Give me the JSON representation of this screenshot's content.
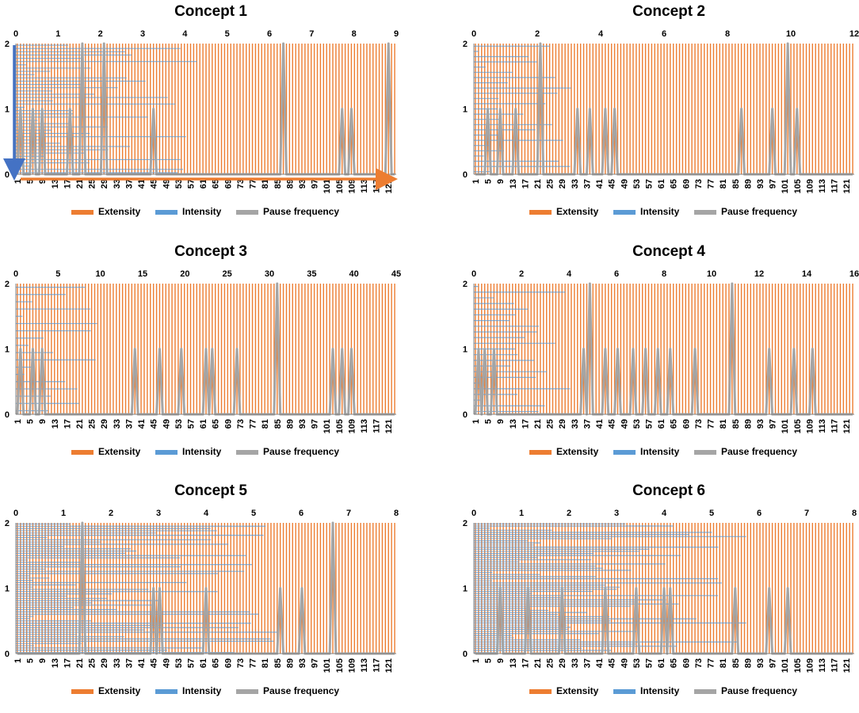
{
  "colors": {
    "extensity": "#ED7D31",
    "intensity": "#5B9BD5",
    "pause": "#A5A5A5",
    "arrow_blue": "#4472C4",
    "arrow_orange": "#ED7D31"
  },
  "legend": {
    "extensity": "Extensity",
    "intensity": "Intensity",
    "pause": "Pause frequency"
  },
  "chart_data": [
    {
      "type": "bar",
      "title": "Concept 1",
      "n": 123,
      "ylim": [
        0,
        2
      ],
      "yticks": [
        0,
        1,
        2
      ],
      "x_top": [
        0,
        1,
        2,
        3,
        4,
        5,
        6,
        7,
        8,
        9
      ],
      "x_top_max": 9,
      "x_bottom": [
        1,
        5,
        9,
        13,
        17,
        21,
        25,
        29,
        33,
        37,
        41,
        45,
        49,
        53,
        57,
        61,
        65,
        69,
        73,
        77,
        81,
        85,
        89,
        93,
        97,
        101,
        105,
        109,
        113,
        117,
        121
      ],
      "extensity_range": [
        1,
        123
      ],
      "intensity_bars": 40,
      "pause_peaks": [
        {
          "x": 2,
          "y": 1
        },
        {
          "x": 6,
          "y": 1
        },
        {
          "x": 9,
          "y": 1
        },
        {
          "x": 18,
          "y": 1
        },
        {
          "x": 22,
          "y": 2
        },
        {
          "x": 29,
          "y": 2
        },
        {
          "x": 45,
          "y": 1
        },
        {
          "x": 87,
          "y": 2
        },
        {
          "x": 106,
          "y": 1
        },
        {
          "x": 109,
          "y": 1
        },
        {
          "x": 121,
          "y": 2
        }
      ],
      "arrows": true
    },
    {
      "type": "bar",
      "title": "Concept 2",
      "n": 123,
      "ylim": [
        0,
        2
      ],
      "yticks": [
        0,
        1,
        2
      ],
      "x_top": [
        0,
        2,
        4,
        6,
        8,
        10,
        12
      ],
      "x_top_max": 12,
      "x_bottom": [
        1,
        5,
        9,
        13,
        17,
        21,
        25,
        29,
        33,
        37,
        41,
        45,
        49,
        53,
        57,
        61,
        65,
        69,
        73,
        77,
        81,
        85,
        89,
        93,
        97,
        101,
        105,
        109,
        113,
        117,
        121
      ],
      "extensity_range": [
        1,
        123
      ],
      "intensity_bars": 25,
      "pause_peaks": [
        {
          "x": 5,
          "y": 1
        },
        {
          "x": 9,
          "y": 1
        },
        {
          "x": 14,
          "y": 1
        },
        {
          "x": 22,
          "y": 2
        },
        {
          "x": 34,
          "y": 1
        },
        {
          "x": 38,
          "y": 1
        },
        {
          "x": 43,
          "y": 1
        },
        {
          "x": 46,
          "y": 1
        },
        {
          "x": 87,
          "y": 1
        },
        {
          "x": 97,
          "y": 1
        },
        {
          "x": 102,
          "y": 2
        },
        {
          "x": 105,
          "y": 1
        }
      ],
      "arrows": false
    },
    {
      "type": "bar",
      "title": "Concept 3",
      "n": 123,
      "ylim": [
        0,
        2
      ],
      "yticks": [
        0,
        1,
        2
      ],
      "x_top": [
        0,
        5,
        10,
        15,
        20,
        25,
        30,
        35,
        40,
        45
      ],
      "x_top_max": 45,
      "x_bottom": [
        1,
        5,
        9,
        13,
        17,
        21,
        25,
        29,
        33,
        37,
        41,
        45,
        49,
        53,
        57,
        61,
        65,
        69,
        73,
        77,
        81,
        85,
        89,
        93,
        97,
        101,
        105,
        109,
        113,
        117,
        121
      ],
      "extensity_range": [
        1,
        123
      ],
      "intensity_bars": 18,
      "pause_peaks": [
        {
          "x": 2,
          "y": 1
        },
        {
          "x": 6,
          "y": 1
        },
        {
          "x": 9,
          "y": 1
        },
        {
          "x": 39,
          "y": 1
        },
        {
          "x": 47,
          "y": 1
        },
        {
          "x": 54,
          "y": 1
        },
        {
          "x": 62,
          "y": 1
        },
        {
          "x": 64,
          "y": 1
        },
        {
          "x": 72,
          "y": 1
        },
        {
          "x": 85,
          "y": 2
        },
        {
          "x": 103,
          "y": 1
        },
        {
          "x": 106,
          "y": 1
        },
        {
          "x": 109,
          "y": 1
        }
      ],
      "arrows": false
    },
    {
      "type": "bar",
      "title": "Concept 4",
      "n": 123,
      "ylim": [
        0,
        2
      ],
      "yticks": [
        0,
        1,
        2
      ],
      "x_top": [
        0,
        2,
        4,
        6,
        8,
        10,
        12,
        14,
        16
      ],
      "x_top_max": 16,
      "x_bottom": [
        1,
        5,
        9,
        13,
        17,
        21,
        25,
        29,
        33,
        37,
        41,
        45,
        49,
        53,
        57,
        61,
        65,
        69,
        73,
        77,
        81,
        85,
        89,
        93,
        97,
        101,
        105,
        109,
        113,
        117,
        121
      ],
      "extensity_range": [
        1,
        123
      ],
      "intensity_bars": 23,
      "pause_peaks": [
        {
          "x": 2,
          "y": 1
        },
        {
          "x": 4,
          "y": 1
        },
        {
          "x": 7,
          "y": 1
        },
        {
          "x": 36,
          "y": 1
        },
        {
          "x": 38,
          "y": 2
        },
        {
          "x": 43,
          "y": 1
        },
        {
          "x": 47,
          "y": 1
        },
        {
          "x": 52,
          "y": 1
        },
        {
          "x": 56,
          "y": 1
        },
        {
          "x": 60,
          "y": 1
        },
        {
          "x": 64,
          "y": 1
        },
        {
          "x": 72,
          "y": 1
        },
        {
          "x": 84,
          "y": 2
        },
        {
          "x": 96,
          "y": 1
        },
        {
          "x": 104,
          "y": 1
        },
        {
          "x": 110,
          "y": 1
        }
      ],
      "arrows": false
    },
    {
      "type": "bar",
      "title": "Concept 5",
      "n": 123,
      "ylim": [
        0,
        2
      ],
      "yticks": [
        0,
        1,
        2
      ],
      "x_top": [
        0,
        1,
        2,
        3,
        4,
        5,
        6,
        7,
        8
      ],
      "x_top_max": 8,
      "x_bottom": [
        1,
        5,
        9,
        13,
        17,
        21,
        25,
        29,
        33,
        37,
        41,
        45,
        49,
        53,
        57,
        61,
        65,
        69,
        73,
        77,
        81,
        85,
        89,
        93,
        97,
        101,
        105,
        109,
        113,
        117,
        121
      ],
      "extensity_range": [
        1,
        123
      ],
      "intensity_bars": 58,
      "pause_peaks": [
        {
          "x": 22,
          "y": 2
        },
        {
          "x": 45,
          "y": 1
        },
        {
          "x": 47,
          "y": 1
        },
        {
          "x": 62,
          "y": 1
        },
        {
          "x": 86,
          "y": 1
        },
        {
          "x": 93,
          "y": 1
        },
        {
          "x": 103,
          "y": 2
        }
      ],
      "arrows": false
    },
    {
      "type": "bar",
      "title": "Concept 6",
      "n": 123,
      "ylim": [
        0,
        2
      ],
      "yticks": [
        0,
        1,
        2
      ],
      "x_top": [
        0,
        1,
        2,
        3,
        4,
        5,
        6,
        7,
        8
      ],
      "x_top_max": 8,
      "x_bottom": [
        1,
        5,
        9,
        13,
        17,
        21,
        25,
        29,
        33,
        37,
        41,
        45,
        49,
        53,
        57,
        61,
        65,
        69,
        73,
        77,
        81,
        85,
        89,
        93,
        97,
        101,
        105,
        109,
        113,
        117,
        121
      ],
      "extensity_range": [
        1,
        123
      ],
      "intensity_bars": 62,
      "pause_peaks": [
        {
          "x": 9,
          "y": 1
        },
        {
          "x": 18,
          "y": 1
        },
        {
          "x": 29,
          "y": 1
        },
        {
          "x": 43,
          "y": 1
        },
        {
          "x": 53,
          "y": 1
        },
        {
          "x": 62,
          "y": 1
        },
        {
          "x": 64,
          "y": 1
        },
        {
          "x": 85,
          "y": 1
        },
        {
          "x": 96,
          "y": 1
        },
        {
          "x": 102,
          "y": 1
        }
      ],
      "arrows": false
    }
  ]
}
